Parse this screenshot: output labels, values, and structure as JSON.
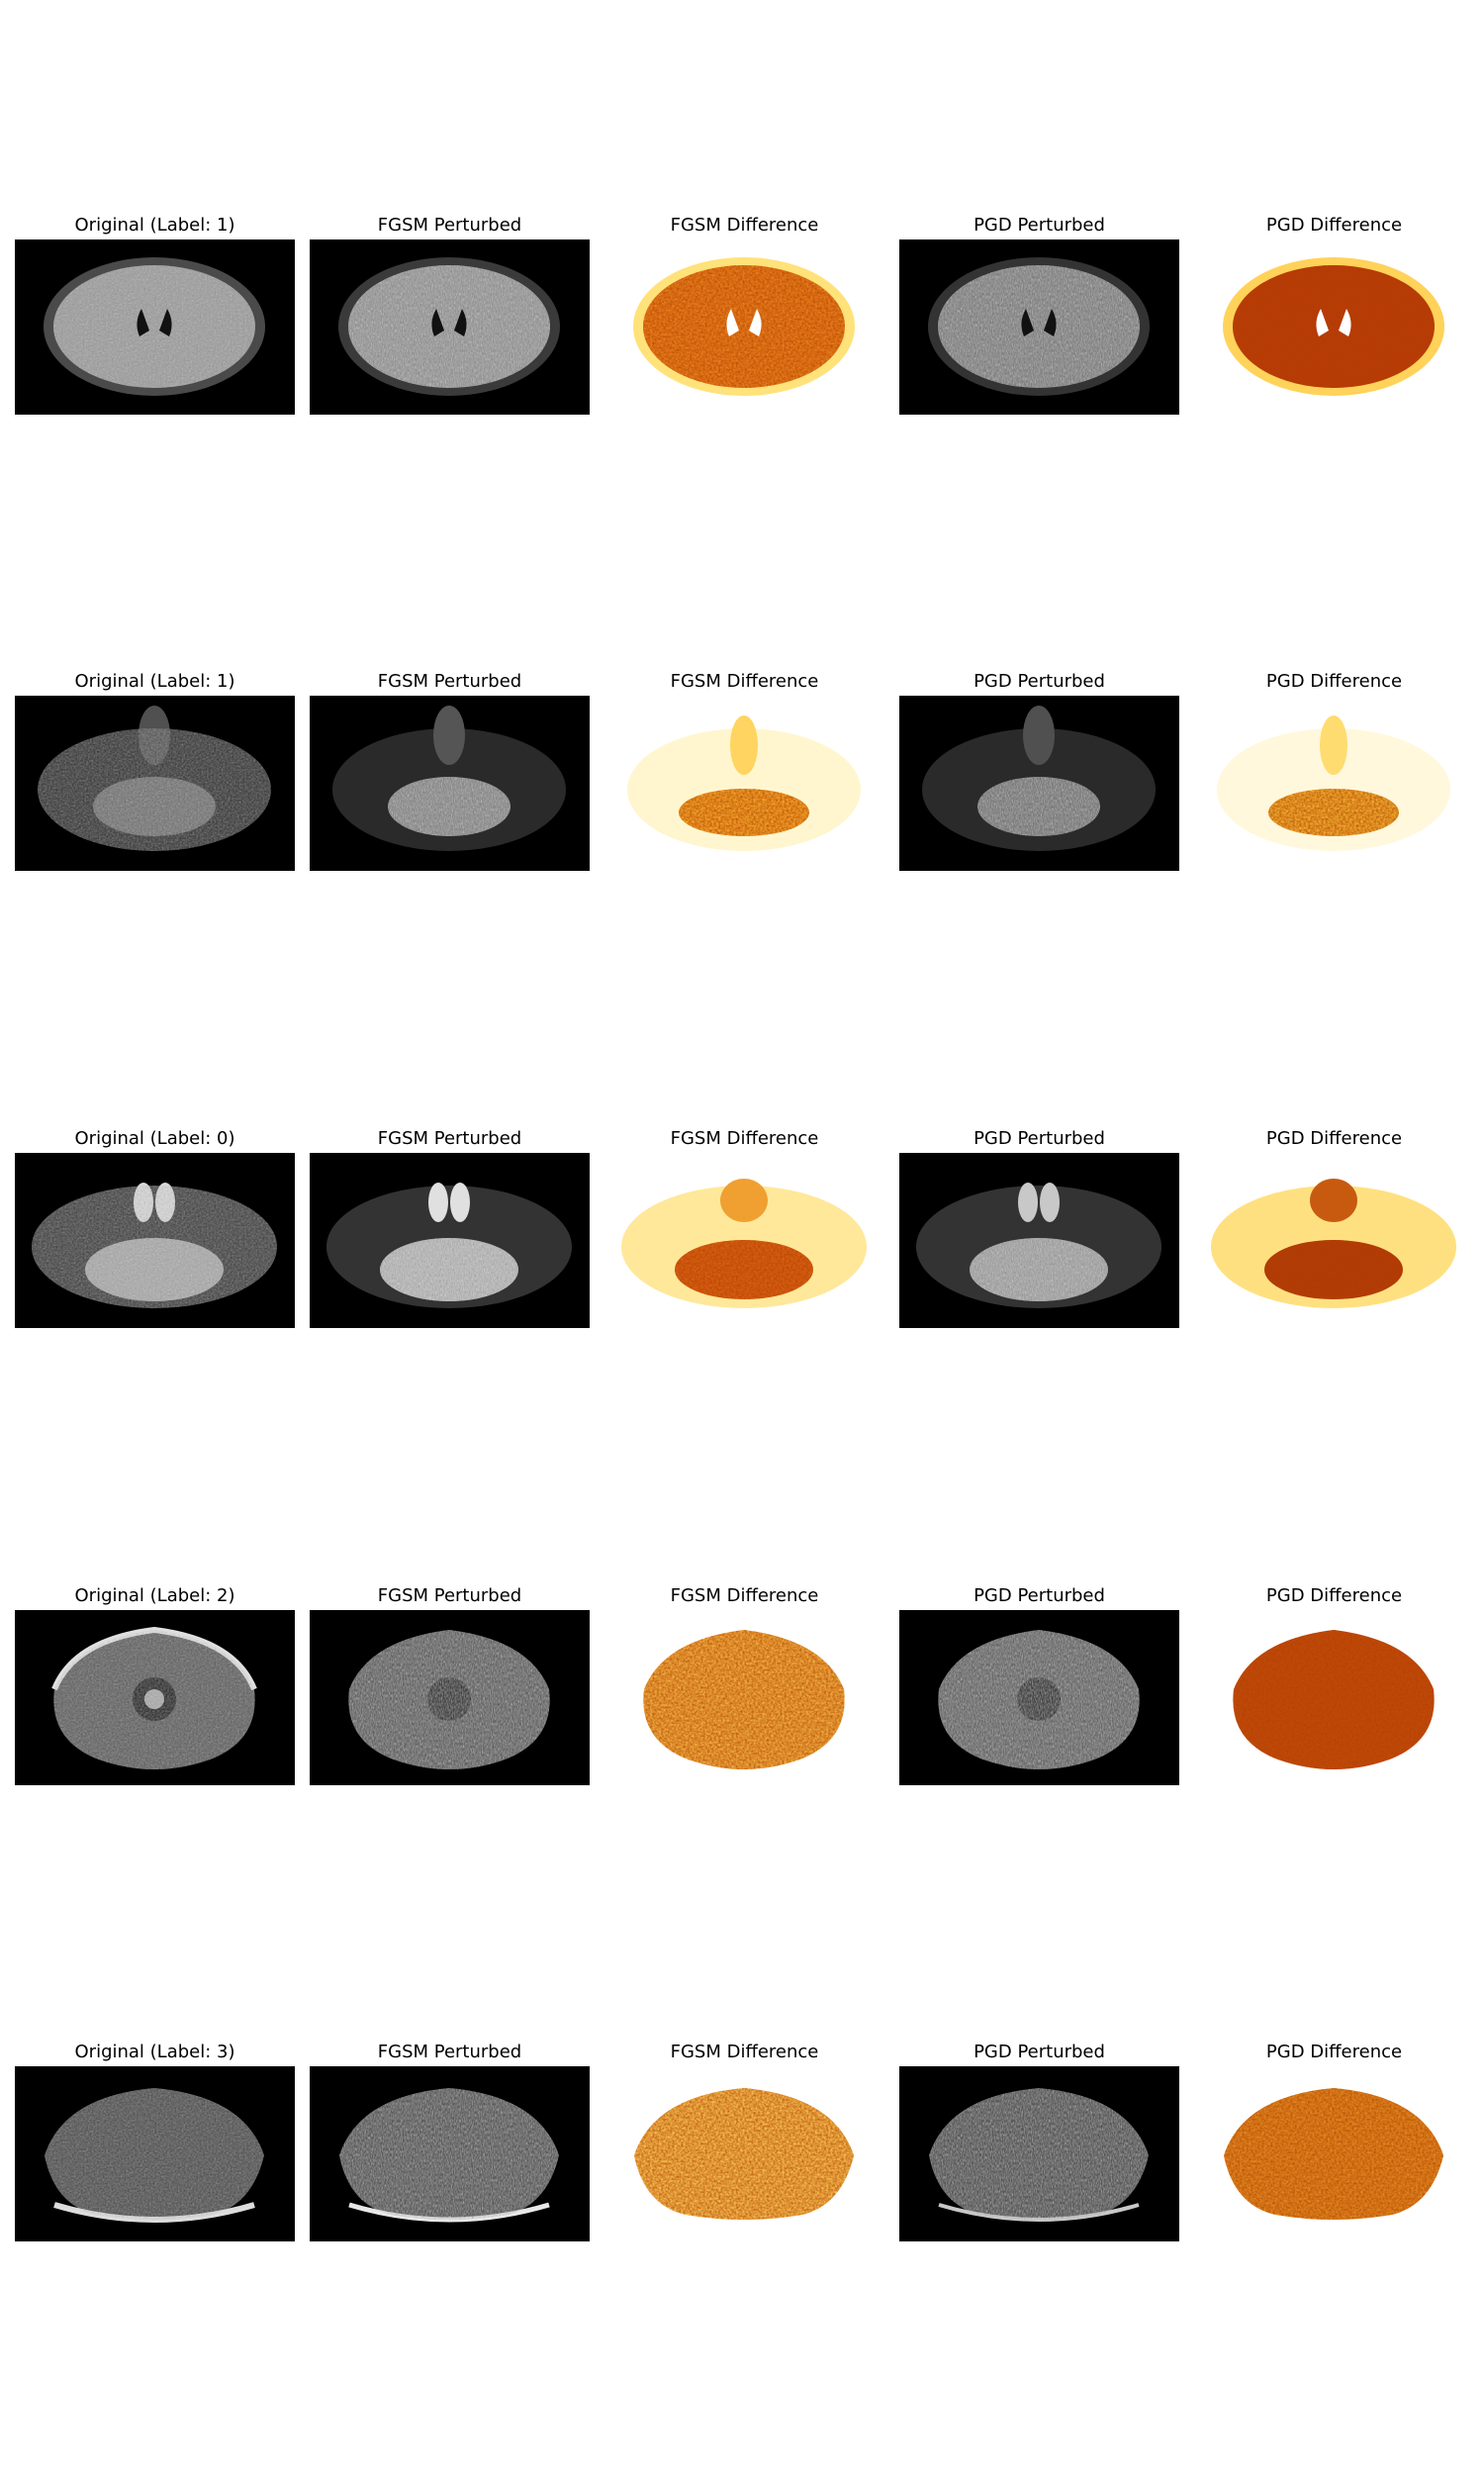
{
  "rows": [
    {
      "original_title": "Original (Label: 1)",
      "fgsm_perturbed_title": "FGSM Perturbed",
      "fgsm_difference_title": "FGSM Difference",
      "pgd_perturbed_title": "PGD Perturbed",
      "pgd_difference_title": "PGD Difference"
    },
    {
      "original_title": "Original (Label: 1)",
      "fgsm_perturbed_title": "FGSM Perturbed",
      "fgsm_difference_title": "FGSM Difference",
      "pgd_perturbed_title": "PGD Perturbed",
      "pgd_difference_title": "PGD Difference"
    },
    {
      "original_title": "Original (Label: 0)",
      "fgsm_perturbed_title": "FGSM Perturbed",
      "fgsm_difference_title": "FGSM Difference",
      "pgd_perturbed_title": "PGD Perturbed",
      "pgd_difference_title": "PGD Difference"
    },
    {
      "original_title": "Original (Label: 2)",
      "fgsm_perturbed_title": "FGSM Perturbed",
      "fgsm_difference_title": "FGSM Difference",
      "pgd_perturbed_title": "PGD Perturbed",
      "pgd_difference_title": "PGD Difference"
    },
    {
      "original_title": "Original (Label: 3)",
      "fgsm_perturbed_title": "FGSM Perturbed",
      "fgsm_difference_title": "FGSM Difference",
      "pgd_perturbed_title": "PGD Perturbed",
      "pgd_difference_title": "PGD Difference"
    }
  ]
}
